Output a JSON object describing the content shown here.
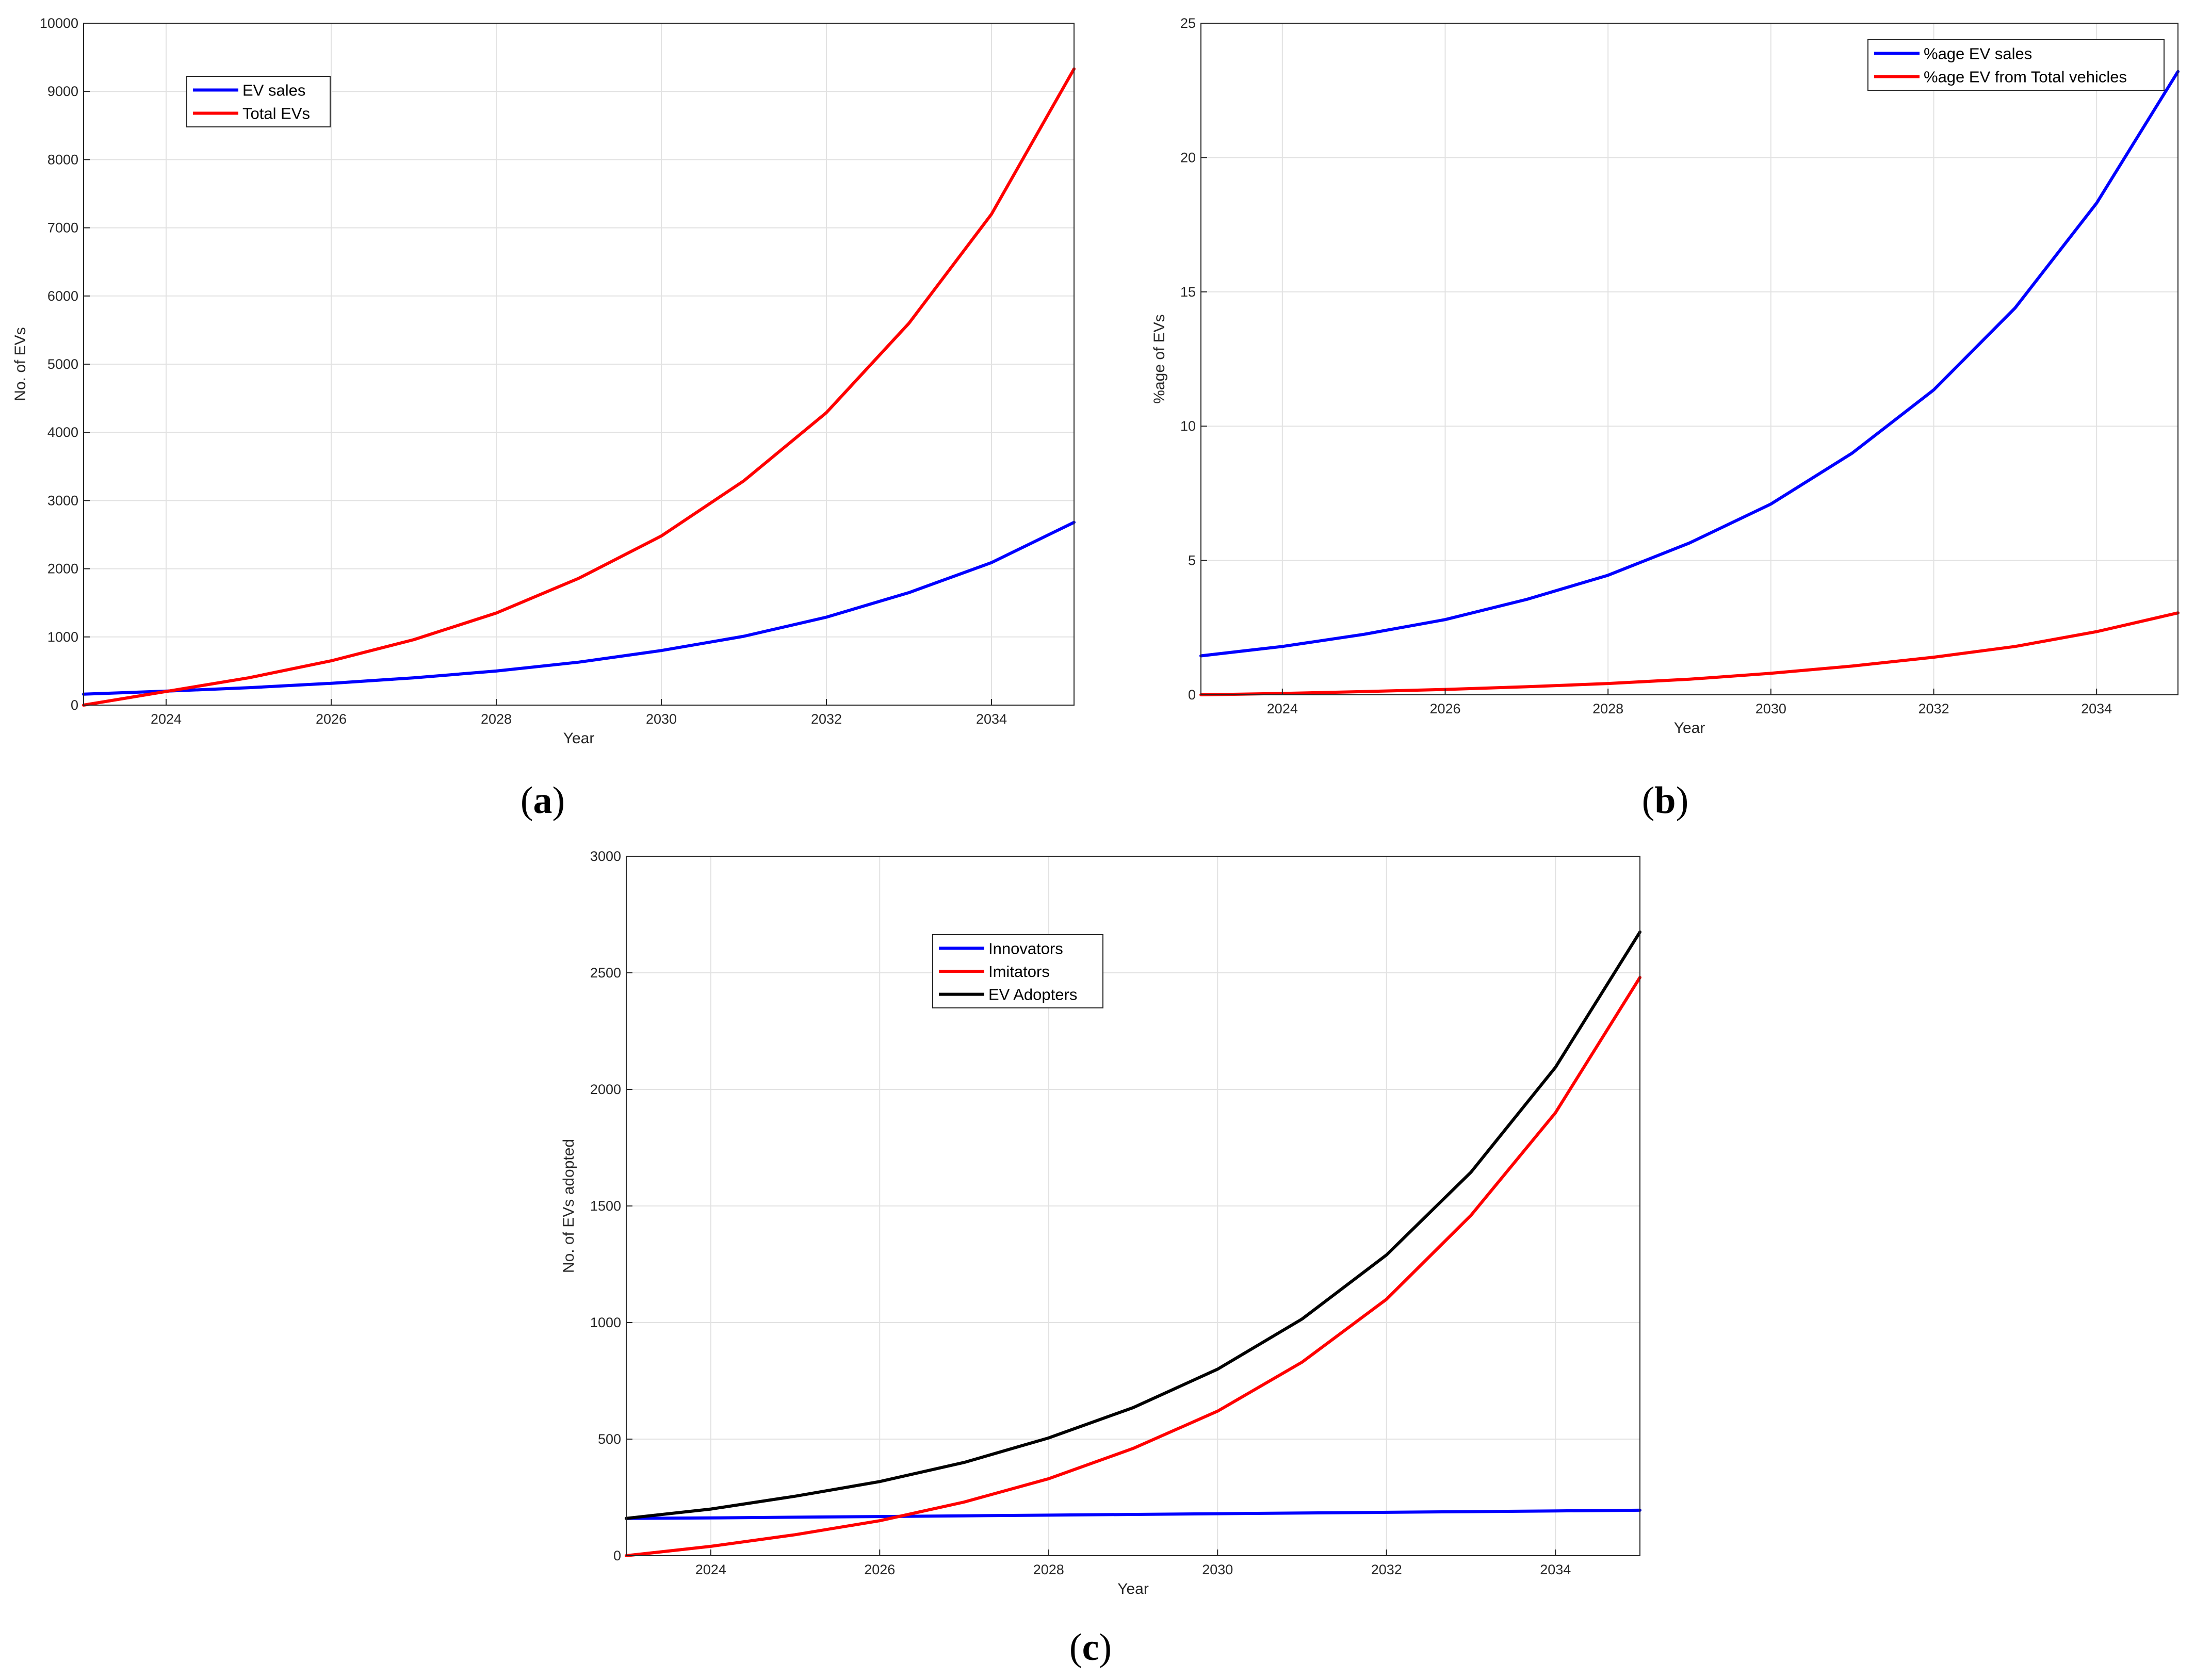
{
  "chart_data": [
    {
      "id": "a",
      "type": "line",
      "caption_letter": "a",
      "xlabel": "Year",
      "ylabel": "No. of EVs",
      "xlim": [
        2023,
        2035
      ],
      "ylim": [
        0,
        10000
      ],
      "xticks": [
        2024,
        2026,
        2028,
        2030,
        2032,
        2034
      ],
      "yticks": [
        0,
        1000,
        2000,
        3000,
        4000,
        5000,
        6000,
        7000,
        8000,
        9000,
        10000
      ],
      "grid": true,
      "legend_position": "top-left",
      "x": [
        2023,
        2024,
        2025,
        2026,
        2027,
        2028,
        2029,
        2030,
        2031,
        2032,
        2033,
        2034,
        2035
      ],
      "series": [
        {
          "name": "EV sales",
          "color": "#0000ff",
          "values": [
            160,
            205,
            255,
            320,
            400,
            500,
            630,
            800,
            1010,
            1290,
            1650,
            2090,
            2680
          ]
        },
        {
          "name": "Total EVs",
          "color": "#ff0000",
          "values": [
            0,
            200,
            400,
            650,
            960,
            1350,
            1860,
            2480,
            3290,
            4290,
            5600,
            7200,
            9330
          ]
        }
      ]
    },
    {
      "id": "b",
      "type": "line",
      "caption_letter": "b",
      "xlabel": "Year",
      "ylabel": "%age of EVs",
      "xlim": [
        2023,
        2035
      ],
      "ylim": [
        0,
        25
      ],
      "xticks": [
        2024,
        2026,
        2028,
        2030,
        2032,
        2034
      ],
      "yticks": [
        0,
        5,
        10,
        15,
        20,
        25
      ],
      "grid": true,
      "legend_position": "top-right",
      "x": [
        2023,
        2024,
        2025,
        2026,
        2027,
        2028,
        2029,
        2030,
        2031,
        2032,
        2033,
        2034,
        2035
      ],
      "series": [
        {
          "name": "%age EV sales",
          "color": "#0000ff",
          "values": [
            1.45,
            1.8,
            2.25,
            2.8,
            3.55,
            4.45,
            5.65,
            7.1,
            9.0,
            11.35,
            14.4,
            18.3,
            23.2
          ]
        },
        {
          "name": "%age EV from Total vehicles",
          "color": "#ff0000",
          "values": [
            0,
            0.05,
            0.12,
            0.2,
            0.3,
            0.42,
            0.58,
            0.8,
            1.07,
            1.4,
            1.8,
            2.35,
            3.05
          ]
        }
      ]
    },
    {
      "id": "c",
      "type": "line",
      "caption_letter": "c",
      "xlabel": "Year",
      "ylabel": "No. of EVs adopted",
      "xlim": [
        2023,
        2035
      ],
      "ylim": [
        0,
        3000
      ],
      "xticks": [
        2024,
        2026,
        2028,
        2030,
        2032,
        2034
      ],
      "yticks": [
        0,
        500,
        1000,
        1500,
        2000,
        2500,
        3000
      ],
      "grid": true,
      "legend_position": "top-left",
      "x": [
        2023,
        2024,
        2025,
        2026,
        2027,
        2028,
        2029,
        2030,
        2031,
        2032,
        2033,
        2034,
        2035
      ],
      "series": [
        {
          "name": "Innovators",
          "color": "#0000ff",
          "values": [
            160,
            162,
            165,
            168,
            171,
            174,
            177,
            180,
            183,
            186,
            189,
            192,
            195
          ]
        },
        {
          "name": "Imitators",
          "color": "#ff0000",
          "values": [
            0,
            40,
            90,
            150,
            230,
            330,
            460,
            620,
            830,
            1100,
            1460,
            1900,
            2480
          ]
        },
        {
          "name": "EV Adopters",
          "color": "#000000",
          "values": [
            160,
            200,
            255,
            318,
            400,
            505,
            635,
            800,
            1015,
            1290,
            1645,
            2095,
            2675
          ]
        }
      ]
    }
  ]
}
